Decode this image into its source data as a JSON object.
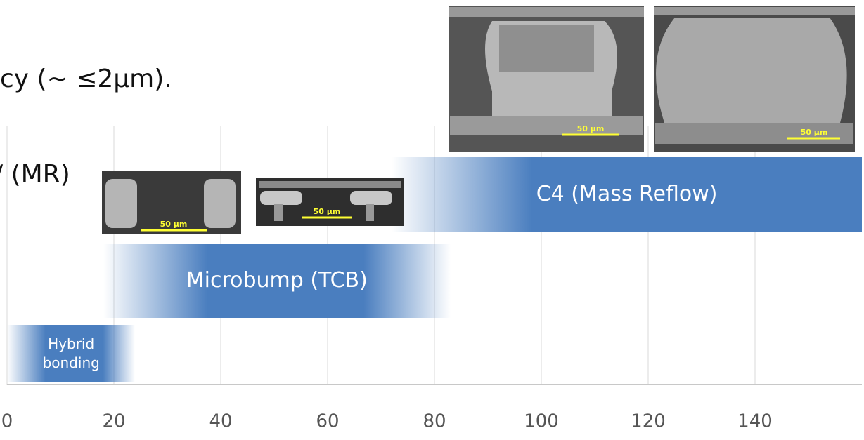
{
  "chart_data": {
    "type": "range-bar",
    "categories": [
      "Hybrid bonding",
      "Microbump (TCB)",
      "C4 (Mass Reflow)"
    ],
    "starts": [
      0,
      18,
      72
    ],
    "ends": [
      24,
      83,
      160
    ],
    "color": "#4a7ebf",
    "xlim": [
      0,
      160
    ],
    "xticks": [
      0,
      20,
      40,
      60,
      80,
      100,
      120,
      140
    ],
    "grid": true
  },
  "slide_text": [
    "cy (~ ≤2μm).",
    "/ (MR)"
  ],
  "images": [
    {
      "scale": "50 μm"
    },
    {
      "scale": "50 μm"
    },
    {
      "scale": "50 μm"
    },
    {
      "scale": "50 μm"
    }
  ]
}
